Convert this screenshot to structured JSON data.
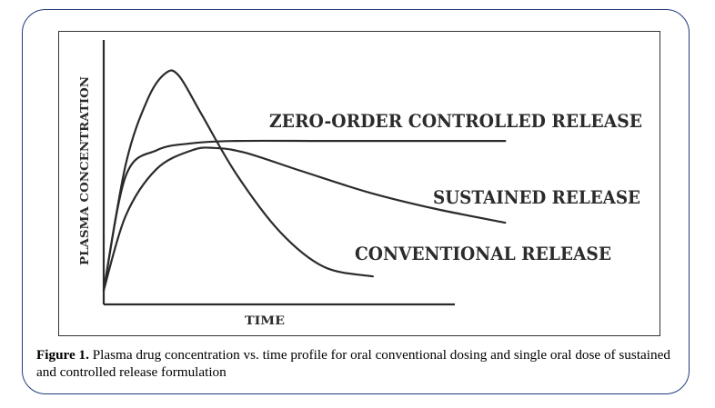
{
  "chart_data": {
    "type": "line",
    "xlabel": "TIME",
    "ylabel": "PLASMA CONCENTRATION",
    "series": [
      {
        "name": "ZERO-ORDER CONTROLLED RELEASE",
        "points": [
          [
            0,
            0.06
          ],
          [
            0.05,
            0.55
          ],
          [
            0.12,
            0.66
          ],
          [
            0.2,
            0.69
          ],
          [
            0.3,
            0.7
          ],
          [
            0.5,
            0.7
          ],
          [
            0.7,
            0.7
          ],
          [
            0.91,
            0.7
          ]
        ]
      },
      {
        "name": "SUSTAINED RELEASE",
        "points": [
          [
            0,
            0.06
          ],
          [
            0.05,
            0.38
          ],
          [
            0.12,
            0.58
          ],
          [
            0.2,
            0.66
          ],
          [
            0.25,
            0.67
          ],
          [
            0.32,
            0.65
          ],
          [
            0.45,
            0.57
          ],
          [
            0.6,
            0.48
          ],
          [
            0.75,
            0.41
          ],
          [
            0.91,
            0.35
          ]
        ]
      },
      {
        "name": "CONVENTIONAL RELEASE",
        "points": [
          [
            0,
            0.06
          ],
          [
            0.05,
            0.6
          ],
          [
            0.1,
            0.88
          ],
          [
            0.14,
            0.99
          ],
          [
            0.17,
            0.98
          ],
          [
            0.22,
            0.82
          ],
          [
            0.3,
            0.56
          ],
          [
            0.4,
            0.31
          ],
          [
            0.5,
            0.16
          ],
          [
            0.61,
            0.12
          ]
        ]
      }
    ]
  },
  "caption": {
    "label": "Figure 1.",
    "text": " Plasma drug concentration vs. time profile for oral conventional dosing and single oral dose of sustained and controlled release formulation"
  }
}
